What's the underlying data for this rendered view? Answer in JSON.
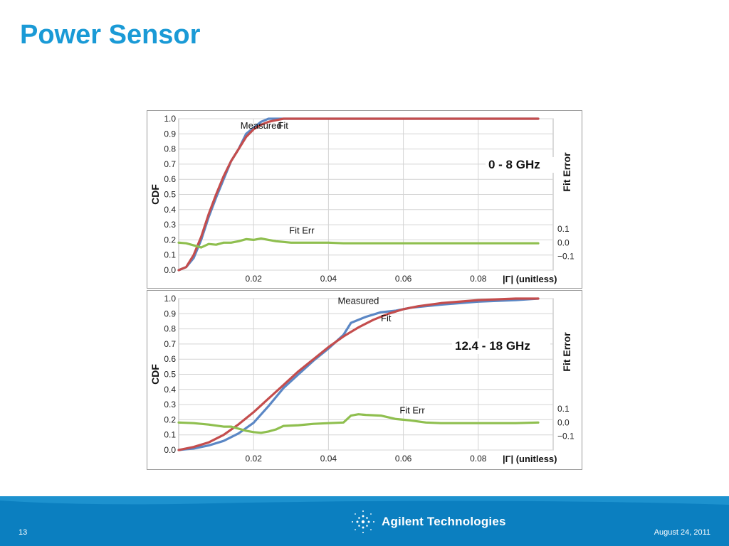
{
  "slide": {
    "title": "Power Sensor",
    "page_number": "13",
    "date": "August 24, 2011",
    "company": "Agilent Technologies",
    "logo_icon": "agilent-spark-icon",
    "title_color": "#1a9ad6",
    "footer_color": "#0b7fc0"
  },
  "chart_data": [
    {
      "type": "line",
      "band_label": "0 - 8 GHz",
      "xlabel": "|Γ| (unitless)",
      "ylabel": "CDF",
      "y2label": "Fit Error",
      "xlim": [
        0,
        0.1
      ],
      "ylim": [
        0,
        1.0
      ],
      "y2lim": [
        -0.2,
        0.9
      ],
      "xticks": [
        "0.02",
        "0.04",
        "0.06",
        "0.08"
      ],
      "yticks": [
        "0.0",
        "0.1",
        "0.2",
        "0.3",
        "0.4",
        "0.5",
        "0.6",
        "0.7",
        "0.8",
        "0.9",
        "1.0"
      ],
      "y2ticks": [
        "−0.1",
        "0.0",
        "0.1"
      ],
      "grid": true,
      "series": [
        {
          "name": "Measured",
          "color": "#5b87c5",
          "axis": "left",
          "x": [
            0,
            0.002,
            0.004,
            0.006,
            0.008,
            0.01,
            0.012,
            0.014,
            0.016,
            0.018,
            0.02,
            0.022,
            0.024,
            0.026,
            0.028,
            0.03,
            0.032,
            0.04,
            0.06,
            0.08,
            0.096
          ],
          "y": [
            0,
            0.02,
            0.08,
            0.2,
            0.35,
            0.48,
            0.6,
            0.72,
            0.8,
            0.9,
            0.94,
            0.98,
            1.0,
            1.0,
            1.0,
            1.0,
            1.0,
            1.0,
            1.0,
            1.0,
            1.0
          ]
        },
        {
          "name": "Fit",
          "color": "#c44d4d",
          "axis": "left",
          "x": [
            0,
            0.002,
            0.004,
            0.006,
            0.008,
            0.01,
            0.012,
            0.014,
            0.016,
            0.018,
            0.02,
            0.022,
            0.024,
            0.026,
            0.028,
            0.03,
            0.032,
            0.04,
            0.06,
            0.08,
            0.096
          ],
          "y": [
            0,
            0.02,
            0.1,
            0.22,
            0.37,
            0.5,
            0.62,
            0.72,
            0.8,
            0.88,
            0.93,
            0.96,
            0.98,
            0.99,
            1.0,
            1.0,
            1.0,
            1.0,
            1.0,
            1.0,
            1.0
          ]
        },
        {
          "name": "Fit Err",
          "color": "#8fbf4f",
          "axis": "right",
          "x": [
            0,
            0.002,
            0.004,
            0.006,
            0.008,
            0.01,
            0.012,
            0.014,
            0.016,
            0.018,
            0.02,
            0.022,
            0.024,
            0.026,
            0.028,
            0.03,
            0.034,
            0.04,
            0.044,
            0.06,
            0.08,
            0.096
          ],
          "y": [
            0.0,
            -0.005,
            -0.02,
            -0.035,
            -0.01,
            -0.015,
            0.0,
            0.0,
            0.01,
            0.025,
            0.02,
            0.03,
            0.02,
            0.01,
            0.005,
            0.0,
            0.0,
            0.0,
            -0.005,
            -0.005,
            -0.005,
            -0.005
          ]
        }
      ],
      "annotations": [
        {
          "text": "Measured",
          "x": 0.0165,
          "y": 0.935
        },
        {
          "text": "Fit",
          "x": 0.0265,
          "y": 0.935
        },
        {
          "text": "Fit Err",
          "x": 0.0295,
          "y": 0.245
        }
      ]
    },
    {
      "type": "line",
      "band_label": "12.4 - 18 GHz",
      "xlabel": "|Γ| (unitless)",
      "ylabel": "CDF",
      "y2label": "Fit Error",
      "xlim": [
        0,
        0.1
      ],
      "ylim": [
        0,
        1.0
      ],
      "y2lim": [
        -0.2,
        0.9
      ],
      "xticks": [
        "0.02",
        "0.04",
        "0.06",
        "0.08"
      ],
      "yticks": [
        "0.0",
        "0.1",
        "0.2",
        "0.3",
        "0.4",
        "0.5",
        "0.6",
        "0.7",
        "0.8",
        "0.9",
        "1.0"
      ],
      "y2ticks": [
        "−0.1",
        "0.0",
        "0.1"
      ],
      "grid": true,
      "series": [
        {
          "name": "Measured",
          "color": "#5b87c5",
          "axis": "left",
          "x": [
            0,
            0.004,
            0.008,
            0.012,
            0.016,
            0.02,
            0.024,
            0.028,
            0.032,
            0.036,
            0.04,
            0.044,
            0.046,
            0.05,
            0.054,
            0.058,
            0.062,
            0.07,
            0.08,
            0.09,
            0.096
          ],
          "y": [
            0,
            0.01,
            0.03,
            0.06,
            0.11,
            0.18,
            0.29,
            0.41,
            0.5,
            0.59,
            0.67,
            0.76,
            0.84,
            0.88,
            0.91,
            0.92,
            0.94,
            0.96,
            0.98,
            0.99,
            1.0
          ]
        },
        {
          "name": "Fit",
          "color": "#c44d4d",
          "axis": "left",
          "x": [
            0,
            0.004,
            0.008,
            0.012,
            0.016,
            0.02,
            0.024,
            0.028,
            0.032,
            0.036,
            0.04,
            0.044,
            0.048,
            0.052,
            0.056,
            0.06,
            0.064,
            0.07,
            0.08,
            0.09,
            0.096
          ],
          "y": [
            0,
            0.02,
            0.05,
            0.1,
            0.17,
            0.25,
            0.34,
            0.43,
            0.52,
            0.6,
            0.68,
            0.75,
            0.81,
            0.86,
            0.9,
            0.93,
            0.95,
            0.97,
            0.99,
            1.0,
            1.0
          ]
        },
        {
          "name": "Fit Err",
          "color": "#8fbf4f",
          "axis": "right",
          "x": [
            0,
            0.004,
            0.008,
            0.012,
            0.014,
            0.016,
            0.018,
            0.02,
            0.022,
            0.024,
            0.026,
            0.028,
            0.032,
            0.036,
            0.04,
            0.044,
            0.046,
            0.048,
            0.05,
            0.054,
            0.058,
            0.062,
            0.066,
            0.07,
            0.08,
            0.09,
            0.096
          ],
          "y": [
            0.0,
            -0.005,
            -0.015,
            -0.03,
            -0.03,
            -0.045,
            -0.06,
            -0.07,
            -0.075,
            -0.065,
            -0.05,
            -0.025,
            -0.02,
            -0.01,
            -0.005,
            0.0,
            0.05,
            0.06,
            0.055,
            0.05,
            0.025,
            0.015,
            0.0,
            -0.005,
            -0.005,
            -0.005,
            0.0
          ]
        }
      ],
      "annotations": [
        {
          "text": "Measured",
          "x": 0.0425,
          "y": 0.965
        },
        {
          "text": "Fit",
          "x": 0.054,
          "y": 0.85
        },
        {
          "text": "Fit Err",
          "x": 0.059,
          "y": 0.25
        }
      ]
    }
  ]
}
